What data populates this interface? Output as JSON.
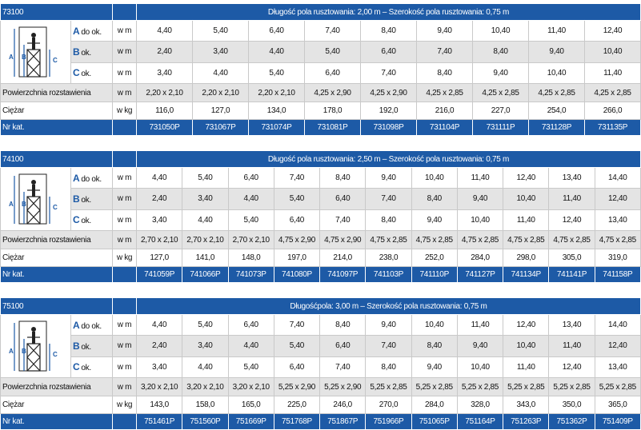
{
  "tables": [
    {
      "code": "73100",
      "header": "Długość pola rusztowania: 2,00 m – Szerokość pola rusztowania: 0,75 m",
      "rows": [
        {
          "letter": "A",
          "label": "do ok.",
          "unit": "w m",
          "values": [
            "4,40",
            "5,40",
            "6,40",
            "7,40",
            "8,40",
            "9,40",
            "10,40",
            "11,40",
            "12,40"
          ]
        },
        {
          "letter": "B",
          "label": "ok.",
          "unit": "w m",
          "values": [
            "2,40",
            "3,40",
            "4,40",
            "5,40",
            "6,40",
            "7,40",
            "8,40",
            "9,40",
            "10,40"
          ]
        },
        {
          "letter": "C",
          "label": "ok.",
          "unit": "w m",
          "values": [
            "3,40",
            "4,40",
            "5,40",
            "6,40",
            "7,40",
            "8,40",
            "9,40",
            "10,40",
            "11,40"
          ]
        }
      ],
      "area": {
        "label": "Powierzchnia rozstawienia",
        "unit": "w m",
        "values": [
          "2,20 x 2,10",
          "2,20 x 2,10",
          "2,20 x 2,10",
          "4,25 x 2,90",
          "4,25 x 2,90",
          "4,25 x 2,85",
          "4,25 x 2,85",
          "4,25 x 2,85",
          "4,25 x 2,85"
        ]
      },
      "weight": {
        "label": "Ciężar",
        "unit": "w kg",
        "values": [
          "116,0",
          "127,0",
          "134,0",
          "178,0",
          "192,0",
          "216,0",
          "227,0",
          "254,0",
          "266,0"
        ]
      },
      "catalog": {
        "label": "Nr kat.",
        "values": [
          "731050P",
          "731067P",
          "731074P",
          "731081P",
          "731098P",
          "731104P",
          "731111P",
          "731128P",
          "731135P"
        ]
      }
    },
    {
      "code": "74100",
      "header": "Długość pola rusztowania: 2,50 m – Szerokość pola rusztowania: 0,75 m",
      "rows": [
        {
          "letter": "A",
          "label": "do ok.",
          "unit": "w m",
          "values": [
            "4,40",
            "5,40",
            "6,40",
            "7,40",
            "8,40",
            "9,40",
            "10,40",
            "11,40",
            "12,40",
            "13,40",
            "14,40"
          ]
        },
        {
          "letter": "B",
          "label": "ok.",
          "unit": "w m",
          "values": [
            "2,40",
            "3,40",
            "4,40",
            "5,40",
            "6,40",
            "7,40",
            "8,40",
            "9,40",
            "10,40",
            "11,40",
            "12,40"
          ]
        },
        {
          "letter": "C",
          "label": "ok.",
          "unit": "w m",
          "values": [
            "3,40",
            "4,40",
            "5,40",
            "6,40",
            "7,40",
            "8,40",
            "9,40",
            "10,40",
            "11,40",
            "12,40",
            "13,40"
          ]
        }
      ],
      "area": {
        "label": "Powierzchnia rozstawienia",
        "unit": "w m",
        "values": [
          "2,70 x 2,10",
          "2,70 x 2,10",
          "2,70 x 2,10",
          "4,75 x 2,90",
          "4,75 x 2,90",
          "4,75 x 2,85",
          "4,75 x 2,85",
          "4,75 x 2,85",
          "4,75 x 2,85",
          "4,75 x 2,85",
          "4,75 x 2,85"
        ]
      },
      "weight": {
        "label": "Ciężar",
        "unit": "w kg",
        "values": [
          "127,0",
          "141,0",
          "148,0",
          "197,0",
          "214,0",
          "238,0",
          "252,0",
          "284,0",
          "298,0",
          "305,0",
          "319,0"
        ]
      },
      "catalog": {
        "label": "Nr kat.",
        "values": [
          "741059P",
          "741066P",
          "741073P",
          "741080P",
          "741097P",
          "741103P",
          "741110P",
          "741127P",
          "741134P",
          "741141P",
          "741158P"
        ]
      }
    },
    {
      "code": "75100",
      "header": "Długośćpola: 3,00 m – Szerokość pola rusztowania: 0,75 m",
      "rows": [
        {
          "letter": "A",
          "label": "do ok.",
          "unit": "w m",
          "values": [
            "4,40",
            "5,40",
            "6,40",
            "7,40",
            "8,40",
            "9,40",
            "10,40",
            "11,40",
            "12,40",
            "13,40",
            "14,40"
          ]
        },
        {
          "letter": "B",
          "label": "ok.",
          "unit": "w m",
          "values": [
            "2,40",
            "3,40",
            "4,40",
            "5,40",
            "6,40",
            "7,40",
            "8,40",
            "9,40",
            "10,40",
            "11,40",
            "12,40"
          ]
        },
        {
          "letter": "C",
          "label": "ok.",
          "unit": "w m",
          "values": [
            "3,40",
            "4,40",
            "5,40",
            "6,40",
            "7,40",
            "8,40",
            "9,40",
            "10,40",
            "11,40",
            "12,40",
            "13,40"
          ]
        }
      ],
      "area": {
        "label": "Powierzchnia rozstawienia",
        "unit": "w m",
        "values": [
          "3,20 x 2,10",
          "3,20 x 2,10",
          "3,20 x 2,10",
          "5,25 x 2,90",
          "5,25 x 2,90",
          "5,25 x 2,85",
          "5,25 x 2,85",
          "5,25 x 2,85",
          "5,25 x 2,85",
          "5,25 x 2,85",
          "5,25 x 2,85"
        ]
      },
      "weight": {
        "label": "Ciężar",
        "unit": "w kg",
        "values": [
          "143,0",
          "158,0",
          "165,0",
          "225,0",
          "246,0",
          "270,0",
          "284,0",
          "328,0",
          "343,0",
          "350,0",
          "365,0"
        ]
      },
      "catalog": {
        "label": "Nr kat.",
        "values": [
          "751461P",
          "751560P",
          "751669P",
          "751768P",
          "751867P",
          "751966P",
          "751065P",
          "751164P",
          "751263P",
          "751362P",
          "751409P"
        ]
      }
    }
  ]
}
